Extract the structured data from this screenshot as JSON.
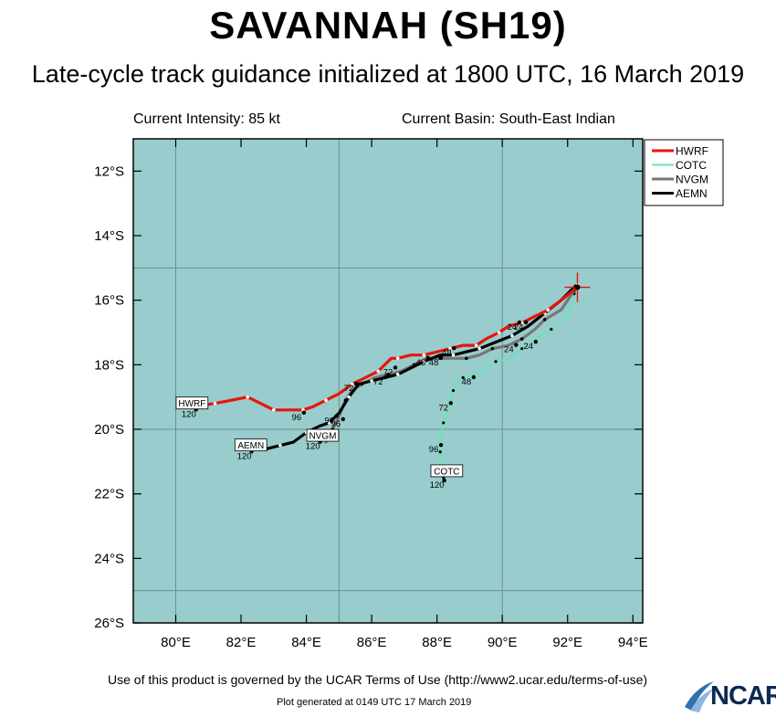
{
  "title": "SAVANNAH (SH19)",
  "subtitle": "Late-cycle track guidance initialized at 1800 UTC, 16 March 2019",
  "current_intensity": "Current Intensity: 85 kt",
  "current_basin": "Current Basin: South-East Indian",
  "footer_terms": "Use of this product is governed by the UCAR Terms of Use (http://www2.ucar.edu/terms-of-use)",
  "footer_generated": "Plot generated at 0149 UTC   17 March 2019",
  "logo_text": "NCAR",
  "colors": {
    "ocean": "#99cccc",
    "HWRF": "#e8140c",
    "COTC": "#66e6b3",
    "NVGM": "#777777",
    "AEMN": "#000000"
  },
  "map": {
    "lon_range": [
      78.7,
      94.3
    ],
    "lat_range": [
      -26,
      -11
    ],
    "lon_ticks": [
      80,
      82,
      84,
      86,
      88,
      90,
      92,
      94
    ],
    "lon_tick_labels": [
      "80°E",
      "82°E",
      "84°E",
      "86°E",
      "88°E",
      "90°E",
      "92°E",
      "94°E"
    ],
    "lat_ticks": [
      -12,
      -14,
      -16,
      -18,
      -20,
      -22,
      -24,
      -26
    ],
    "lat_tick_labels": [
      "12°S",
      "14°S",
      "16°S",
      "18°S",
      "20°S",
      "22°S",
      "24°S",
      "26°S"
    ],
    "grid_lons": [
      80,
      85,
      90
    ],
    "grid_lats": [
      -15,
      -20,
      -25
    ],
    "current_position": {
      "lon": 92.3,
      "lat": -15.6
    }
  },
  "chart_data": {
    "type": "line",
    "legend": [
      "HWRF",
      "COTC",
      "NVGM",
      "AEMN"
    ],
    "legend_placement": "top-right",
    "series": [
      {
        "name": "HWRF",
        "lon": [
          92.3,
          91.8,
          91.4,
          91.0,
          90.6,
          90.2,
          89.9,
          89.5,
          89.2,
          88.8,
          88.4,
          88.0,
          87.6,
          87.2,
          86.8,
          86.6,
          86.2,
          85.8,
          85.4,
          85.0,
          84.6,
          84.2,
          83.9,
          83.5,
          83.0,
          82.6,
          82.2,
          81.7,
          81.2,
          80.5
        ],
        "lat": [
          -15.6,
          -16.0,
          -16.3,
          -16.5,
          -16.7,
          -16.8,
          -17.0,
          -17.2,
          -17.4,
          -17.4,
          -17.5,
          -17.6,
          -17.7,
          -17.7,
          -17.8,
          -17.8,
          -18.2,
          -18.4,
          -18.6,
          -18.9,
          -19.1,
          -19.3,
          -19.4,
          -19.4,
          -19.4,
          -19.2,
          -19.0,
          -19.1,
          -19.2,
          -19.3
        ],
        "labels": [
          {
            "text": "24",
            "lon": 90.3,
            "lat": -16.8
          },
          {
            "text": "48",
            "lon": 88.3,
            "lat": -17.6
          },
          {
            "text": "72",
            "lon": 85.3,
            "lat": -18.7
          },
          {
            "text": "96",
            "lon": 83.7,
            "lat": -19.6
          },
          {
            "text": "120",
            "lon": 80.4,
            "lat": -19.5
          }
        ],
        "tag": {
          "text": "HWRF",
          "lon": 80.5,
          "lat": -19.2
        }
      },
      {
        "name": "COTC",
        "lon": [
          92.2,
          92.0,
          91.5,
          91.0,
          90.6,
          90.2,
          89.8,
          89.2,
          88.8,
          88.6,
          88.5,
          88.4,
          88.2,
          88.1,
          88.1,
          88.1,
          88.2
        ],
        "lat": [
          -15.8,
          -16.5,
          -16.9,
          -17.2,
          -17.5,
          -17.8,
          -17.9,
          -18.3,
          -18.4,
          -18.6,
          -18.8,
          -19.2,
          -19.8,
          -20.4,
          -20.7,
          -21.2,
          -21.5
        ],
        "labels": [
          {
            "text": "24",
            "lon": 90.8,
            "lat": -17.4
          },
          {
            "text": "48",
            "lon": 88.9,
            "lat": -18.5
          },
          {
            "text": "72",
            "lon": 88.2,
            "lat": -19.3
          },
          {
            "text": "96",
            "lon": 87.9,
            "lat": -20.6
          },
          {
            "text": "120",
            "lon": 88.0,
            "lat": -21.7
          }
        ],
        "tag": {
          "text": "COTC",
          "lon": 88.3,
          "lat": -21.3
        }
      },
      {
        "name": "NVGM",
        "lon": [
          92.2,
          91.8,
          91.3,
          91.0,
          90.6,
          90.2,
          89.7,
          89.3,
          88.9,
          88.5,
          88.1,
          87.7,
          87.3,
          86.9,
          86.5,
          86.1,
          85.7,
          85.4,
          85.2,
          85.0,
          84.8,
          84.6
        ],
        "lat": [
          -15.7,
          -16.3,
          -16.6,
          -16.9,
          -17.2,
          -17.4,
          -17.5,
          -17.7,
          -17.8,
          -17.8,
          -17.8,
          -17.8,
          -18.0,
          -18.2,
          -18.3,
          -18.4,
          -18.6,
          -18.8,
          -19.1,
          -19.6,
          -20.0,
          -20.4
        ],
        "labels": [
          {
            "text": "24",
            "lon": 90.2,
            "lat": -17.5
          },
          {
            "text": "48",
            "lon": 87.5,
            "lat": -17.9
          },
          {
            "text": "72",
            "lon": 86.2,
            "lat": -18.5
          },
          {
            "text": "96",
            "lon": 84.9,
            "lat": -19.8
          },
          {
            "text": "120",
            "lon": 84.2,
            "lat": -20.5
          }
        ],
        "tag": {
          "text": "NVGM",
          "lon": 84.5,
          "lat": -20.2
        }
      },
      {
        "name": "AEMN",
        "lon": [
          92.3,
          91.8,
          91.3,
          90.8,
          90.3,
          89.8,
          89.3,
          88.9,
          88.5,
          88.1,
          87.6,
          87.2,
          86.8,
          86.4,
          86.0,
          85.6,
          85.3,
          85.0,
          84.7,
          84.4,
          84.0,
          83.6,
          83.2,
          82.8,
          82.4,
          82.0
        ],
        "lat": [
          -15.5,
          -16.0,
          -16.4,
          -16.8,
          -17.1,
          -17.3,
          -17.5,
          -17.6,
          -17.7,
          -17.7,
          -17.9,
          -18.1,
          -18.3,
          -18.4,
          -18.5,
          -18.6,
          -19.0,
          -19.5,
          -19.8,
          -19.9,
          -20.1,
          -20.4,
          -20.5,
          -20.6,
          -20.6,
          -20.6
        ],
        "labels": [
          {
            "text": "24",
            "lon": 90.5,
            "lat": -16.8
          },
          {
            "text": "48",
            "lon": 87.9,
            "lat": -17.9
          },
          {
            "text": "72",
            "lon": 86.5,
            "lat": -18.2
          },
          {
            "text": "96",
            "lon": 84.7,
            "lat": -19.7
          },
          {
            "text": "120",
            "lon": 82.1,
            "lat": -20.8
          }
        ],
        "tag": {
          "text": "AEMN",
          "lon": 82.3,
          "lat": -20.5
        }
      }
    ]
  }
}
